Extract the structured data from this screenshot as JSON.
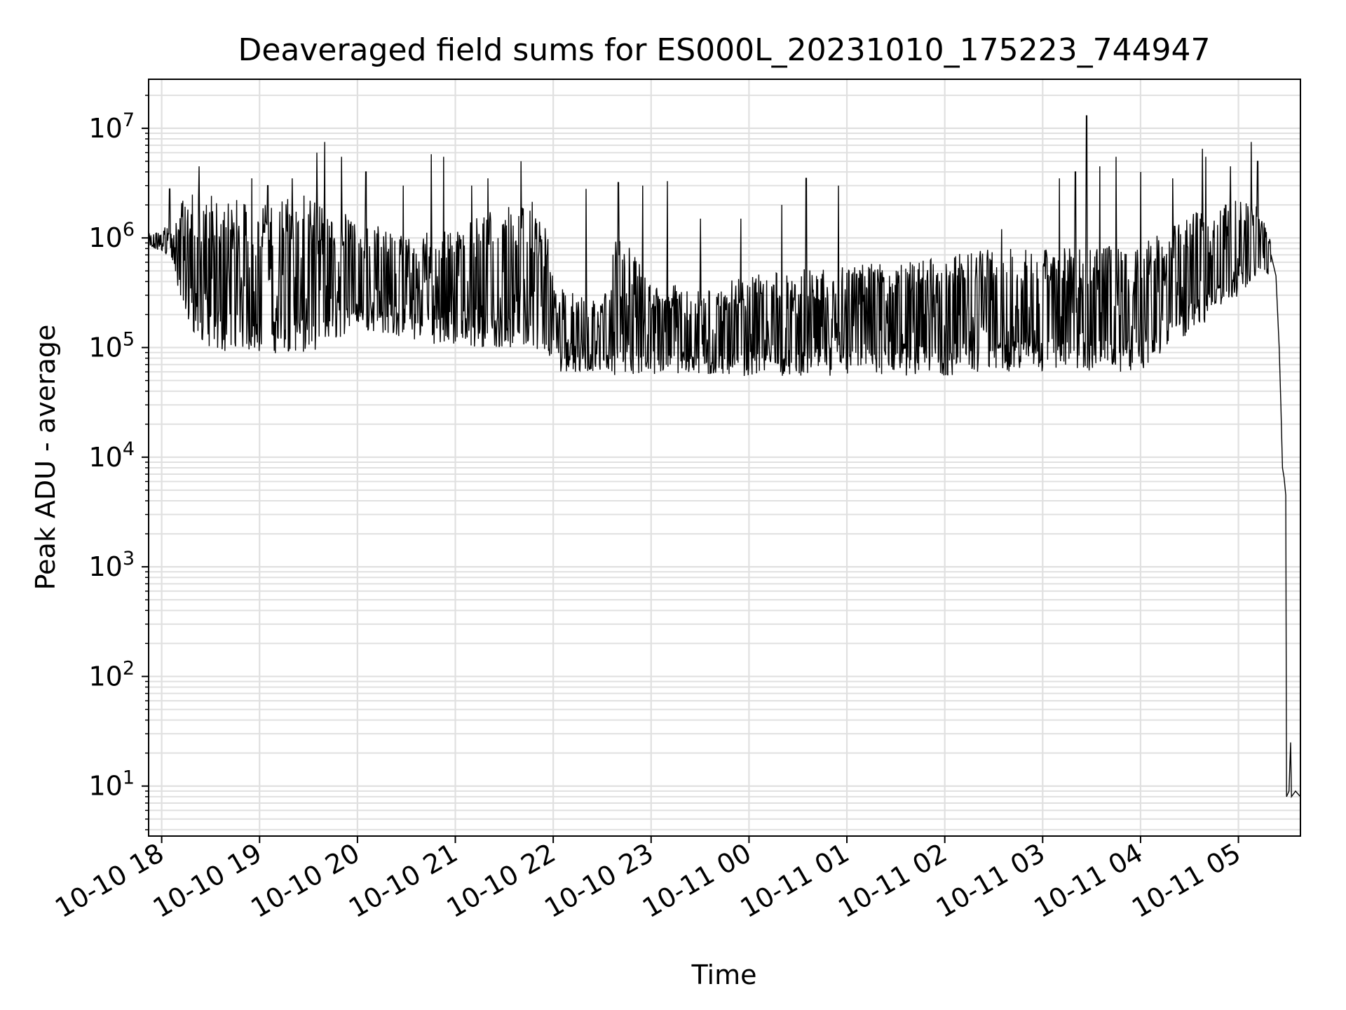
{
  "chart_data": {
    "type": "line",
    "title": "Deaveraged field sums for ES000L_20231010_175223_744947",
    "xlabel": "Time",
    "ylabel": "Peak ADU - average",
    "yscale": "log",
    "ylim": [
      3.5,
      28000000
    ],
    "xlim": [
      "2023-10-10T17:52:00",
      "2023-10-11T05:38:00"
    ],
    "grid": true,
    "line_color": "#000000",
    "grid_color": "#e0e0e0",
    "x_ticks": [
      {
        "t": "2023-10-10T18:00:00",
        "label": "10-10 18"
      },
      {
        "t": "2023-10-10T19:00:00",
        "label": "10-10 19"
      },
      {
        "t": "2023-10-10T20:00:00",
        "label": "10-10 20"
      },
      {
        "t": "2023-10-10T21:00:00",
        "label": "10-10 21"
      },
      {
        "t": "2023-10-10T22:00:00",
        "label": "10-10 22"
      },
      {
        "t": "2023-10-10T23:00:00",
        "label": "10-10 23"
      },
      {
        "t": "2023-10-11T00:00:00",
        "label": "10-11 00"
      },
      {
        "t": "2023-10-11T01:00:00",
        "label": "10-11 01"
      },
      {
        "t": "2023-10-11T02:00:00",
        "label": "10-11 02"
      },
      {
        "t": "2023-10-11T03:00:00",
        "label": "10-11 03"
      },
      {
        "t": "2023-10-11T04:00:00",
        "label": "10-11 04"
      },
      {
        "t": "2023-10-11T05:00:00",
        "label": "10-11 05"
      }
    ],
    "y_ticks": [
      {
        "v": 10,
        "base": "10",
        "exp": "1"
      },
      {
        "v": 100,
        "base": "10",
        "exp": "2"
      },
      {
        "v": 1000,
        "base": "10",
        "exp": "3"
      },
      {
        "v": 10000,
        "base": "10",
        "exp": "4"
      },
      {
        "v": 100000,
        "base": "10",
        "exp": "5"
      },
      {
        "v": 1000000,
        "base": "10",
        "exp": "6"
      },
      {
        "v": 10000000,
        "base": "10",
        "exp": "7"
      }
    ],
    "series": [
      {
        "envelope": [
          {
            "t": "2023-10-10T17:52:00",
            "lo": 800000,
            "hi": 1100000
          },
          {
            "t": "2023-10-10T18:05:00",
            "lo": 700000,
            "hi": 1300000
          },
          {
            "t": "2023-10-10T18:15:00",
            "lo": 150000,
            "hi": 2500000
          },
          {
            "t": "2023-10-10T18:30:00",
            "lo": 90000,
            "hi": 2500000
          },
          {
            "t": "2023-10-10T19:00:00",
            "lo": 90000,
            "hi": 2000000
          },
          {
            "t": "2023-10-10T19:30:00",
            "lo": 85000,
            "hi": 2500000
          },
          {
            "t": "2023-10-10T20:00:00",
            "lo": 150000,
            "hi": 1500000
          },
          {
            "t": "2023-10-10T20:30:00",
            "lo": 120000,
            "hi": 1100000
          },
          {
            "t": "2023-10-10T21:00:00",
            "lo": 100000,
            "hi": 1300000
          },
          {
            "t": "2023-10-10T21:30:00",
            "lo": 100000,
            "hi": 2000000
          },
          {
            "t": "2023-10-10T21:55:00",
            "lo": 90000,
            "hi": 2200000
          },
          {
            "t": "2023-10-10T22:00:00",
            "lo": 60000,
            "hi": 400000
          },
          {
            "t": "2023-10-10T22:30:00",
            "lo": 60000,
            "hi": 250000
          },
          {
            "t": "2023-10-10T22:40:00",
            "lo": 55000,
            "hi": 1200000
          },
          {
            "t": "2023-10-10T23:00:00",
            "lo": 55000,
            "hi": 400000
          },
          {
            "t": "2023-10-10T23:30:00",
            "lo": 55000,
            "hi": 350000
          },
          {
            "t": "2023-10-11T00:00:00",
            "lo": 55000,
            "hi": 450000
          },
          {
            "t": "2023-10-11T01:00:00",
            "lo": 55000,
            "hi": 600000
          },
          {
            "t": "2023-10-11T02:00:00",
            "lo": 55000,
            "hi": 700000
          },
          {
            "t": "2023-10-11T02:30:00",
            "lo": 60000,
            "hi": 800000
          },
          {
            "t": "2023-10-11T03:00:00",
            "lo": 60000,
            "hi": 800000
          },
          {
            "t": "2023-10-11T03:30:00",
            "lo": 60000,
            "hi": 850000
          },
          {
            "t": "2023-10-11T04:00:00",
            "lo": 60000,
            "hi": 850000
          },
          {
            "t": "2023-10-11T04:35:00",
            "lo": 150000,
            "hi": 2000000
          },
          {
            "t": "2023-10-11T05:00:00",
            "lo": 300000,
            "hi": 2200000
          },
          {
            "t": "2023-10-11T05:15:00",
            "lo": 500000,
            "hi": 2000000
          },
          {
            "t": "2023-10-11T05:20:00",
            "lo": 400000,
            "hi": 900000
          }
        ],
        "spikes": [
          {
            "t": "2023-10-10T18:05:00",
            "v": 2800000
          },
          {
            "t": "2023-10-10T18:23:00",
            "v": 4500000
          },
          {
            "t": "2023-10-10T18:55:00",
            "v": 3500000
          },
          {
            "t": "2023-10-10T19:05:00",
            "v": 3000000
          },
          {
            "t": "2023-10-10T19:20:00",
            "v": 3500000
          },
          {
            "t": "2023-10-10T19:35:00",
            "v": 6000000
          },
          {
            "t": "2023-10-10T19:40:00",
            "v": 7500000
          },
          {
            "t": "2023-10-10T19:50:00",
            "v": 5500000
          },
          {
            "t": "2023-10-10T20:05:00",
            "v": 4000000
          },
          {
            "t": "2023-10-10T20:28:00",
            "v": 3000000
          },
          {
            "t": "2023-10-10T20:45:00",
            "v": 5800000
          },
          {
            "t": "2023-10-10T20:53:00",
            "v": 5500000
          },
          {
            "t": "2023-10-10T21:10:00",
            "v": 3000000
          },
          {
            "t": "2023-10-10T21:20:00",
            "v": 3500000
          },
          {
            "t": "2023-10-10T21:40:00",
            "v": 5000000
          },
          {
            "t": "2023-10-10T22:20:00",
            "v": 2800000
          },
          {
            "t": "2023-10-10T22:40:00",
            "v": 3200000
          },
          {
            "t": "2023-10-10T22:55:00",
            "v": 3000000
          },
          {
            "t": "2023-10-10T23:10:00",
            "v": 3300000
          },
          {
            "t": "2023-10-10T23:30:00",
            "v": 1500000
          },
          {
            "t": "2023-10-10T23:55:00",
            "v": 1500000
          },
          {
            "t": "2023-10-11T00:20:00",
            "v": 2000000
          },
          {
            "t": "2023-10-11T00:35:00",
            "v": 3500000
          },
          {
            "t": "2023-10-11T00:55:00",
            "v": 3000000
          },
          {
            "t": "2023-10-11T02:35:00",
            "v": 1200000
          },
          {
            "t": "2023-10-11T03:10:00",
            "v": 3500000
          },
          {
            "t": "2023-10-11T03:20:00",
            "v": 4000000
          },
          {
            "t": "2023-10-11T03:27:00",
            "v": 13000000
          },
          {
            "t": "2023-10-11T03:35:00",
            "v": 4500000
          },
          {
            "t": "2023-10-11T03:45:00",
            "v": 5500000
          },
          {
            "t": "2023-10-11T04:00:00",
            "v": 4000000
          },
          {
            "t": "2023-10-11T04:20:00",
            "v": 3500000
          },
          {
            "t": "2023-10-11T04:38:00",
            "v": 6500000
          },
          {
            "t": "2023-10-11T04:40:00",
            "v": 5500000
          },
          {
            "t": "2023-10-11T04:55:00",
            "v": 4500000
          },
          {
            "t": "2023-10-11T05:08:00",
            "v": 7500000
          },
          {
            "t": "2023-10-11T05:12:00",
            "v": 5000000
          }
        ],
        "tail": [
          {
            "t": "2023-10-11T05:20:00",
            "v": 700000
          },
          {
            "t": "2023-10-11T05:23:00",
            "v": 450000
          },
          {
            "t": "2023-10-11T05:25:00",
            "v": 100000
          },
          {
            "t": "2023-10-11T05:26:00",
            "v": 30000
          },
          {
            "t": "2023-10-11T05:27:00",
            "v": 8000
          },
          {
            "t": "2023-10-11T05:28:00",
            "v": 6500
          },
          {
            "t": "2023-10-11T05:29:00",
            "v": 4500
          },
          {
            "t": "2023-10-11T05:29:30",
            "v": 8
          },
          {
            "t": "2023-10-11T05:31:00",
            "v": 9
          },
          {
            "t": "2023-10-11T05:32:00",
            "v": 25
          },
          {
            "t": "2023-10-11T05:32:30",
            "v": 8
          },
          {
            "t": "2023-10-11T05:35:00",
            "v": 9
          },
          {
            "t": "2023-10-11T05:38:00",
            "v": 8
          }
        ]
      }
    ]
  }
}
